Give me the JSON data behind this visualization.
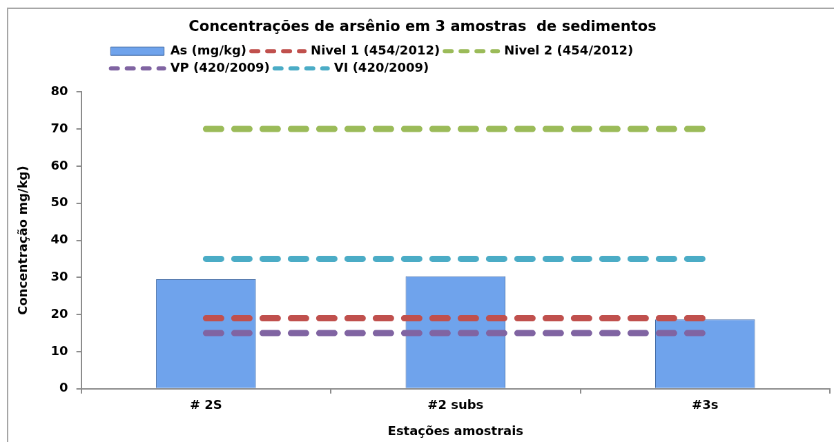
{
  "chart_data": {
    "type": "bar",
    "title": "Concentrações de arsênio em 3 amostras  de sedimentos",
    "xlabel": "Estações amostrais",
    "ylabel": "Concentração mg/kg)",
    "categories": [
      "# 2S",
      "#2 subs",
      "#3s"
    ],
    "series": [
      {
        "name": "As (mg/kg)",
        "color": "#6fa3ec",
        "values": [
          29.5,
          30.3,
          18.7
        ]
      },
      {
        "name": "Nivel 1 (454/2012)",
        "type": "line",
        "line_style": "dashed",
        "color": "#c0504d",
        "values": [
          19,
          19,
          19
        ]
      },
      {
        "name": "Nivel 2 (454/2012)",
        "type": "line",
        "line_style": "dashed",
        "color": "#9bbb59",
        "values": [
          70,
          70,
          70
        ]
      },
      {
        "name": "VP (420/2009)",
        "type": "line",
        "line_style": "dashed",
        "color": "#8064a2",
        "values": [
          15,
          15,
          15
        ]
      },
      {
        "name": "VI (420/2009)",
        "type": "line",
        "line_style": "dashed",
        "color": "#4bacc6",
        "values": [
          35,
          35,
          35
        ]
      }
    ],
    "ylim": [
      0,
      80
    ],
    "yticks": [
      0,
      10,
      20,
      30,
      40,
      50,
      60,
      70,
      80
    ],
    "legend": "top"
  }
}
